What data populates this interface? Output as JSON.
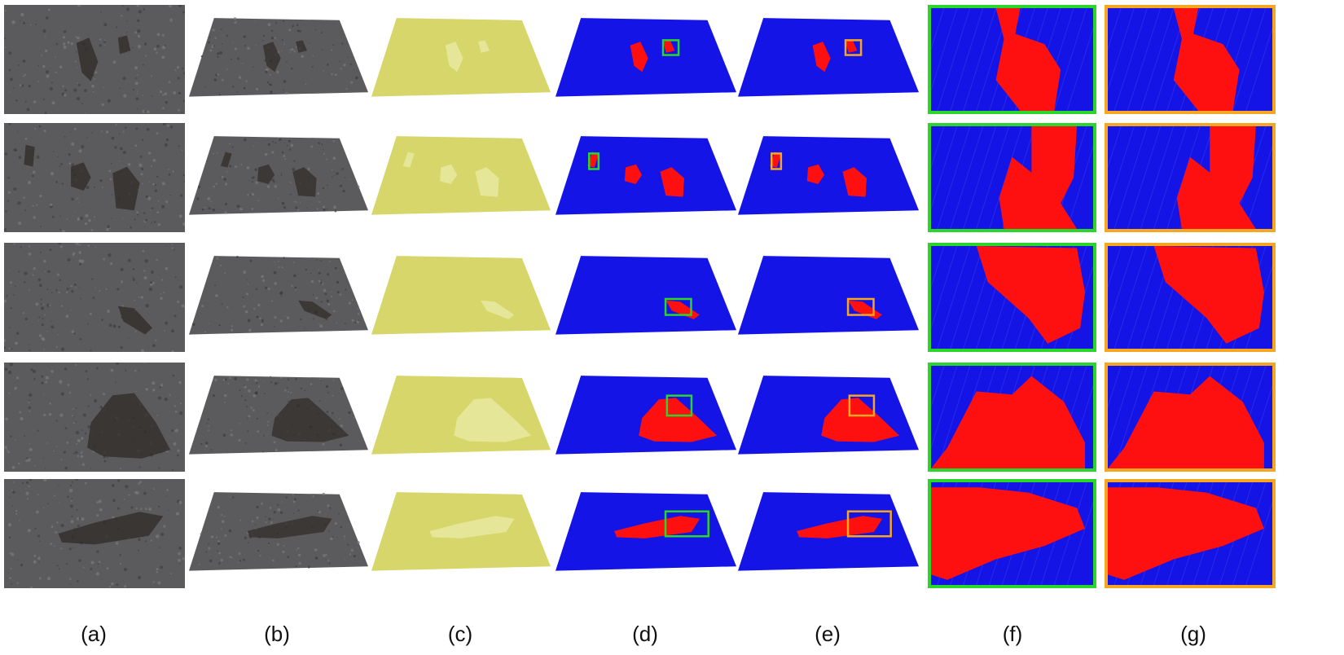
{
  "figure": {
    "columns": [
      {
        "key": "a",
        "label": "(a)",
        "kind": "photo"
      },
      {
        "key": "b",
        "label": "(b)",
        "kind": "textured-mesh"
      },
      {
        "key": "c",
        "label": "(c)",
        "kind": "point-cloud"
      },
      {
        "key": "d",
        "label": "(d)",
        "kind": "segmentation"
      },
      {
        "key": "e",
        "label": "(e)",
        "kind": "segmentation"
      },
      {
        "key": "f",
        "label": "(f)",
        "kind": "zoom"
      },
      {
        "key": "g",
        "label": "(g)",
        "kind": "zoom"
      }
    ],
    "rows": [
      {
        "id": "row-1",
        "damage": "two-patches"
      },
      {
        "id": "row-2",
        "damage": "three-potholes"
      },
      {
        "id": "row-3",
        "damage": "single-crack"
      },
      {
        "id": "row-4",
        "damage": "large-pothole"
      },
      {
        "id": "row-5",
        "damage": "long-crack"
      }
    ],
    "colors": {
      "asphalt": "#5b5b5d",
      "asphalt_light": "#7a7a7c",
      "pointcloud": "#d6d66a",
      "road_class": "#1414e6",
      "damage_class": "#ff1010",
      "box_d": "#2bd62b",
      "box_e": "#f5a623",
      "background": "#ffffff"
    }
  }
}
